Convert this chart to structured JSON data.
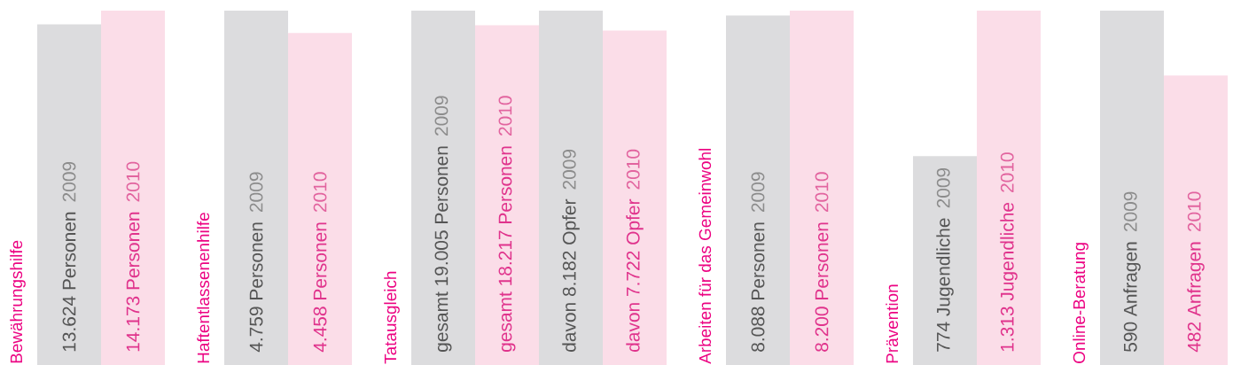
{
  "chart_data": [
    {
      "type": "bar",
      "title": "Bewährungshilfe",
      "categories": [
        null
      ],
      "series": [
        {
          "name": "2009",
          "color": "#dcdcde",
          "values": [
            13624
          ],
          "value_labels": [
            "13.624 Personen"
          ]
        },
        {
          "name": "2010",
          "color": "#fbdde8",
          "values": [
            14173
          ],
          "value_labels": [
            "14.173 Personen"
          ]
        }
      ]
    },
    {
      "type": "bar",
      "title": "Haftentlassenenhilfe",
      "categories": [
        null
      ],
      "series": [
        {
          "name": "2009",
          "color": "#dcdcde",
          "values": [
            4759
          ],
          "value_labels": [
            "4.759 Personen"
          ]
        },
        {
          "name": "2010",
          "color": "#fbdde8",
          "values": [
            4458
          ],
          "value_labels": [
            "4.458 Personen"
          ]
        }
      ]
    },
    {
      "type": "bar",
      "title": "Tatausgleich",
      "categories": [
        null
      ],
      "series": [
        {
          "name": "2009",
          "color": "#dcdcde",
          "values": [
            19005
          ],
          "value_labels": [
            "gesamt 19.005 Personen"
          ]
        },
        {
          "name": "2010",
          "color": "#fbdde8",
          "values": [
            18217
          ],
          "value_labels": [
            "gesamt 18.217 Personen"
          ]
        }
      ]
    },
    {
      "type": "bar",
      "categories": [
        null
      ],
      "series": [
        {
          "name": "2009",
          "color": "#dcdcde",
          "values": [
            8182
          ],
          "value_labels": [
            "davon 8.182 Opfer"
          ]
        },
        {
          "name": "2010",
          "color": "#fbdde8",
          "values": [
            7722
          ],
          "value_labels": [
            "davon 7.722 Opfer"
          ]
        }
      ]
    },
    {
      "type": "bar",
      "title": "Arbeiten für das Gemeinwohl",
      "categories": [
        null
      ],
      "series": [
        {
          "name": "2009",
          "color": "#dcdcde",
          "values": [
            8088
          ],
          "value_labels": [
            "8.088 Personen"
          ]
        },
        {
          "name": "2010",
          "color": "#fbdde8",
          "values": [
            8200
          ],
          "value_labels": [
            "8.200 Personen"
          ]
        }
      ]
    },
    {
      "type": "bar",
      "title": "Prävention",
      "categories": [
        null
      ],
      "series": [
        {
          "name": "2009",
          "color": "#dcdcde",
          "values": [
            774
          ],
          "value_labels": [
            "774 Jugendliche"
          ]
        },
        {
          "name": "2010",
          "color": "#fbdde8",
          "values": [
            1313
          ],
          "value_labels": [
            "1.313 Jugendliche"
          ]
        }
      ]
    },
    {
      "type": "bar",
      "title": "Online-Beratung",
      "categories": [
        null
      ],
      "series": [
        {
          "name": "2009",
          "color": "#dcdcde",
          "values": [
            590
          ],
          "value_labels": [
            "590 Anfragen"
          ]
        },
        {
          "name": "2010",
          "color": "#fbdde8",
          "values": [
            482
          ],
          "value_labels": [
            "482 Anfragen"
          ]
        }
      ]
    }
  ]
}
